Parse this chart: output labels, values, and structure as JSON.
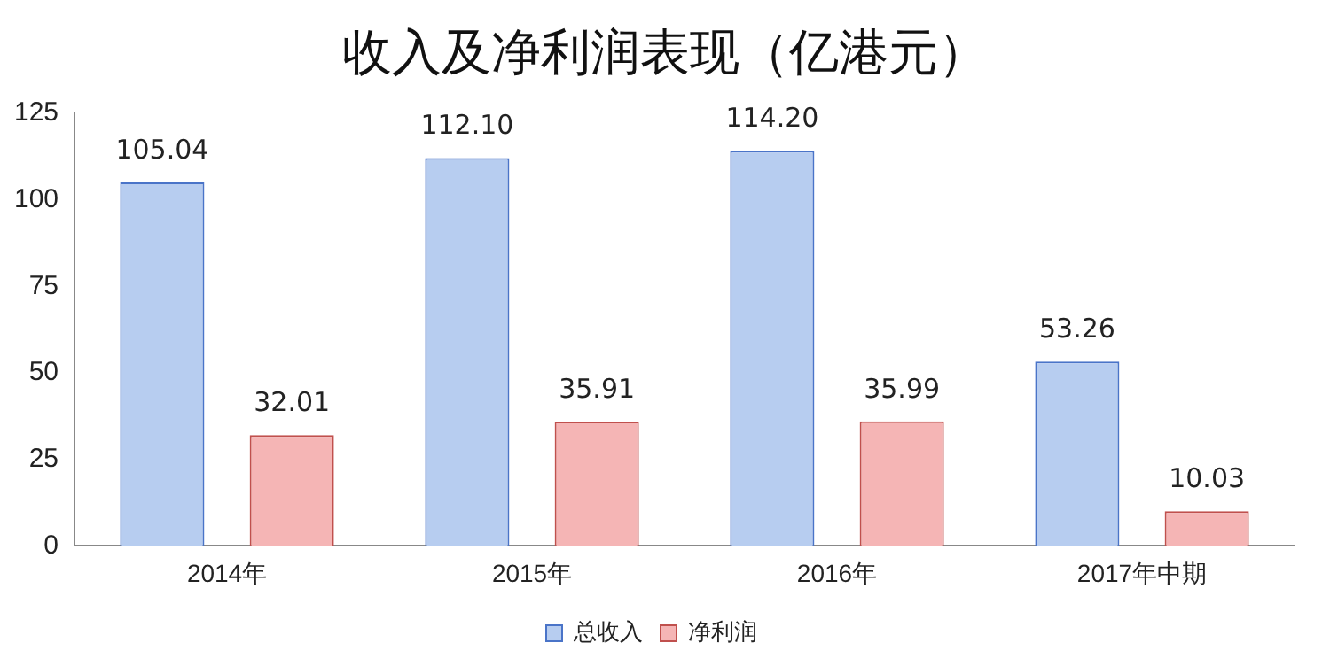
{
  "chart_data": {
    "type": "bar",
    "title": "收入及净利润表现（亿港元）",
    "categories": [
      "2014年",
      "2015年",
      "2016年",
      "2017年中期"
    ],
    "series": [
      {
        "name": "总收入",
        "color": "#b7cdf0",
        "values": [
          105.04,
          112.1,
          114.2,
          53.26
        ],
        "value_labels": [
          "105.04",
          "112.10",
          "114.20",
          "53.26"
        ]
      },
      {
        "name": "净利润",
        "color": "#f5b5b5",
        "values": [
          32.01,
          35.91,
          35.99,
          10.03
        ],
        "value_labels": [
          "32.01",
          "35.91",
          "35.99",
          "10.03"
        ]
      }
    ],
    "ylim": [
      0,
      125
    ],
    "yticks": [
      0,
      25,
      50,
      75,
      100,
      125
    ],
    "grid": false,
    "legend": "bottom"
  }
}
